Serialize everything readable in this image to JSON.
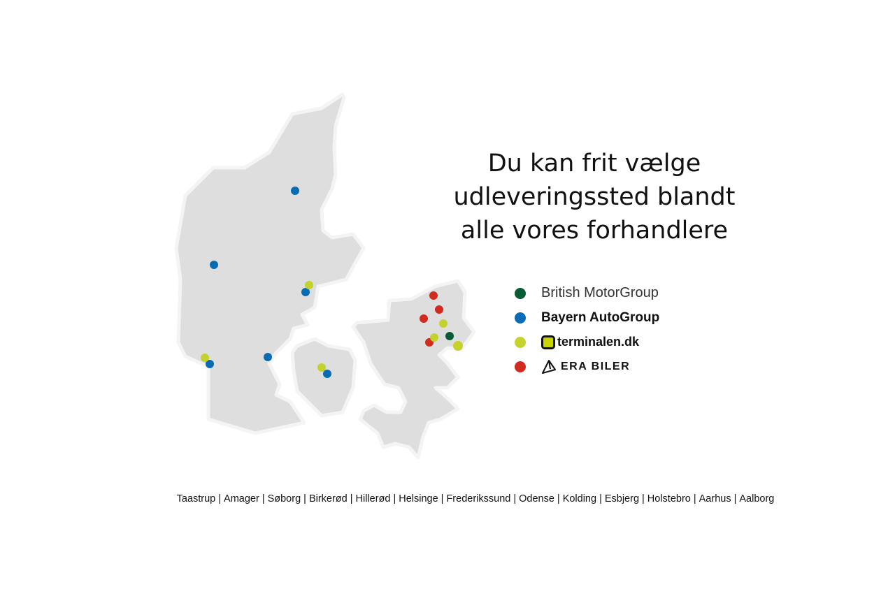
{
  "headline": [
    "Du kan frit vælge",
    "udleveringssted blandt",
    "alle vores forhandlere"
  ],
  "legend": [
    {
      "label": "British MotorGroup",
      "color": "#0a5c36"
    },
    {
      "label": "Bayern AutoGroup",
      "color": "#0a6bb5"
    },
    {
      "label": "terminalen.dk",
      "color": "#c3d22c",
      "icon": "terminalen-logo-icon"
    },
    {
      "label": "ERA BILER",
      "color": "#d12a1f",
      "icon": "era-logo-icon"
    }
  ],
  "map": {
    "regions": [
      "Jutland",
      "Funen",
      "Zealand"
    ],
    "land_color": "#dedede",
    "dealer_locations": [
      {
        "dealer": "Bayern AutoGroup",
        "region": "North Jutland"
      },
      {
        "dealer": "Bayern AutoGroup",
        "region": "West Jutland"
      },
      {
        "dealer": "Bayern AutoGroup",
        "region": "East Jutland"
      },
      {
        "dealer": "terminalen.dk",
        "region": "East Jutland"
      },
      {
        "dealer": "Bayern AutoGroup",
        "region": "South Jutland"
      },
      {
        "dealer": "Bayern AutoGroup",
        "region": "Southwest Jutland"
      },
      {
        "dealer": "terminalen.dk",
        "region": "Southwest Jutland"
      },
      {
        "dealer": "Bayern AutoGroup",
        "region": "Funen"
      },
      {
        "dealer": "terminalen.dk",
        "region": "Funen"
      },
      {
        "dealer": "ERA BILER",
        "region": "North Zealand"
      },
      {
        "dealer": "ERA BILER",
        "region": "North Zealand"
      },
      {
        "dealer": "ERA BILER",
        "region": "North Zealand"
      },
      {
        "dealer": "ERA BILER",
        "region": "Copenhagen area"
      },
      {
        "dealer": "terminalen.dk",
        "region": "North Zealand"
      },
      {
        "dealer": "terminalen.dk",
        "region": "Copenhagen area"
      },
      {
        "dealer": "terminalen.dk",
        "region": "Copenhagen area"
      },
      {
        "dealer": "British MotorGroup",
        "region": "Copenhagen area"
      }
    ]
  },
  "cities": [
    "Taastrup",
    "Amager",
    "Søborg",
    "Birkerød",
    "Hillerød",
    "Helsinge",
    "Frederikssund",
    "Odense",
    "Kolding",
    "Esbjerg",
    "Holstebro",
    "Aarhus",
    "Aalborg"
  ]
}
